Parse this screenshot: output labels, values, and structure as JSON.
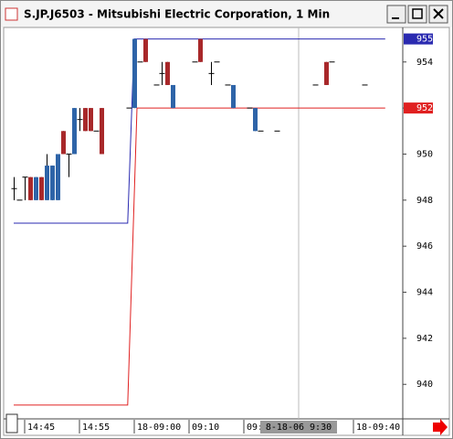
{
  "chart_data": {
    "type": "candlestick",
    "title": "S.JP.J6503 - Mitsubishi Electric Corporation, 1 Min",
    "categories": [
      null,
      null,
      null,
      null,
      null,
      null,
      null,
      null,
      null,
      null,
      null,
      null,
      null,
      null,
      null,
      null,
      null,
      null,
      null,
      null,
      null,
      null,
      null,
      null,
      null,
      null,
      null,
      null,
      null,
      null,
      null,
      null,
      null,
      null,
      null,
      null,
      null,
      null,
      null,
      null,
      null,
      null,
      null,
      null,
      null,
      null,
      null,
      null,
      null,
      null,
      null,
      null,
      null,
      null,
      null,
      null,
      null,
      null,
      null,
      null,
      null,
      null,
      null,
      null,
      null
    ],
    "open": [
      948.5,
      948,
      949,
      949,
      948,
      949,
      948,
      948,
      948,
      951,
      950,
      950,
      951.5,
      952,
      952,
      951,
      952,
      null,
      null,
      null,
      null,
      952,
      952,
      954,
      955,
      null,
      953,
      953.5,
      954,
      952,
      null,
      null,
      null,
      954,
      955,
      null,
      953.5,
      954,
      null,
      953,
      952,
      null,
      null,
      952,
      951,
      951,
      null,
      null,
      951,
      null,
      null,
      null,
      null,
      null,
      null,
      953,
      null,
      954,
      954,
      null,
      null,
      null,
      null,
      null,
      953
    ],
    "high": [
      949,
      948,
      949,
      949,
      949,
      949,
      950,
      949.5,
      950,
      951,
      950,
      952,
      952,
      952,
      952,
      951,
      952,
      null,
      null,
      null,
      null,
      952,
      955,
      954,
      955,
      null,
      953,
      954,
      954,
      953,
      null,
      null,
      null,
      954,
      955,
      null,
      954,
      954,
      null,
      953,
      953,
      null,
      null,
      952,
      952,
      951,
      null,
      null,
      951,
      null,
      null,
      null,
      null,
      null,
      null,
      953,
      null,
      954,
      954,
      null,
      null,
      null,
      null,
      null,
      953
    ],
    "low": [
      948,
      948,
      948,
      948,
      948,
      948,
      948,
      948,
      948,
      950,
      949,
      950,
      951,
      951,
      951,
      951,
      950,
      null,
      null,
      null,
      null,
      952,
      952,
      954,
      954,
      null,
      953,
      953,
      953,
      952,
      null,
      null,
      null,
      954,
      954,
      null,
      953,
      954,
      null,
      953,
      952,
      null,
      null,
      952,
      951,
      951,
      null,
      null,
      951,
      null,
      null,
      null,
      null,
      null,
      null,
      953,
      null,
      953,
      954,
      null,
      null,
      null,
      null,
      null,
      953
    ],
    "close": [
      948.5,
      948,
      949,
      948,
      949,
      948,
      949.5,
      949.5,
      950,
      950,
      950,
      952,
      951.5,
      951,
      951,
      951,
      950,
      null,
      null,
      null,
      null,
      952,
      955,
      954,
      954,
      null,
      953,
      953.5,
      953,
      953,
      null,
      null,
      null,
      954,
      954,
      null,
      953.5,
      954,
      null,
      953,
      953,
      null,
      null,
      952,
      952,
      951,
      null,
      null,
      951,
      null,
      null,
      null,
      null,
      null,
      null,
      953,
      null,
      953,
      954,
      null,
      null,
      null,
      null,
      null,
      953
    ],
    "up_color": "#2e64a8",
    "down_color": "#a8282a",
    "series": [
      {
        "color": "#2a2ab0",
        "x": [
          0,
          20.8,
          22,
          67.8
        ],
        "values": [
          947,
          947,
          955,
          955
        ]
      },
      {
        "color": "#e02020",
        "x": [
          0,
          20.8,
          22.5,
          67.8
        ],
        "values": [
          939.1,
          939.1,
          952,
          952
        ]
      }
    ],
    "price_tags": [
      {
        "value": 955,
        "color": "#2a2ab0"
      },
      {
        "value": 952,
        "color": "#e02020"
      }
    ],
    "ylim": [
      938.5,
      955.5
    ],
    "yticks": [
      940,
      942,
      944,
      946,
      948,
      950,
      952,
      954
    ],
    "xticks": [
      {
        "value": 2,
        "label": "14:45"
      },
      {
        "value": 12,
        "label": "14:55"
      },
      {
        "value": 22,
        "label": "18-09:00"
      },
      {
        "value": 32,
        "label": "09:10"
      },
      {
        "value": 42,
        "label": "09:"
      },
      {
        "value": 62,
        "label": "18-09:40"
      }
    ],
    "cursor": {
      "x": 52,
      "label": "8-18-06  9:30"
    }
  }
}
